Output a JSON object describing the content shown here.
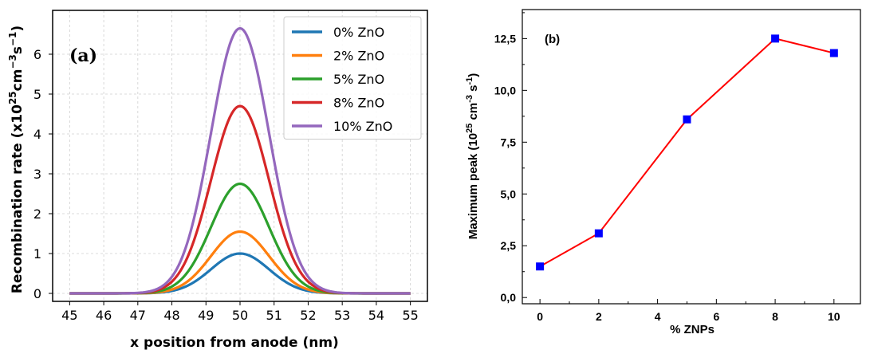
{
  "chart_data": [
    {
      "type": "line",
      "panel_label": "(a)",
      "xlabel": "x position from anode (nm)",
      "ylabel_parts": [
        "Recombination rate (x10",
        "25",
        "cm",
        "−3",
        "s",
        "−1",
        ")"
      ],
      "x_ticks": [
        "45",
        "46",
        "47",
        "48",
        "49",
        "50",
        "51",
        "52",
        "53",
        "54",
        "55"
      ],
      "y_ticks": [
        "0",
        "1",
        "2",
        "3",
        "4",
        "5",
        "6"
      ],
      "xlim": [
        44.5,
        55.5
      ],
      "ylim": [
        -0.2,
        7.1
      ],
      "grid": true,
      "legend_position": "top-right",
      "curve": {
        "center": 50,
        "sigma": 0.85
      },
      "series": [
        {
          "name": "0% ZnO",
          "peak": 1.0,
          "color": "#1f77b4"
        },
        {
          "name": "2% ZnO",
          "peak": 1.55,
          "color": "#ff7f0e"
        },
        {
          "name": "5% ZnO",
          "peak": 2.75,
          "color": "#2ca02c"
        },
        {
          "name": "8% ZnO",
          "peak": 4.7,
          "color": "#d62728"
        },
        {
          "name": "10% ZnO",
          "peak": 6.65,
          "color": "#9467bd"
        }
      ]
    },
    {
      "type": "line",
      "panel_label": "(b)",
      "xlabel": "% ZNPs",
      "ylabel_parts": [
        "Maximum peak (10",
        "25",
        " cm",
        "-3",
        " s",
        "-1",
        ")"
      ],
      "x_ticks": [
        "0",
        "2",
        "4",
        "6",
        "8",
        "10"
      ],
      "y_ticks": [
        "0,0",
        "2,5",
        "5,0",
        "7,5",
        "10,0",
        "12,5"
      ],
      "xlim": [
        -0.6,
        10.9
      ],
      "ylim": [
        -0.3,
        13.9
      ],
      "grid": false,
      "line_color": "#ff0000",
      "marker_color": "#0000ff",
      "x": [
        0,
        2,
        5,
        8,
        10
      ],
      "y": [
        1.5,
        3.1,
        8.6,
        12.5,
        11.8
      ]
    }
  ]
}
